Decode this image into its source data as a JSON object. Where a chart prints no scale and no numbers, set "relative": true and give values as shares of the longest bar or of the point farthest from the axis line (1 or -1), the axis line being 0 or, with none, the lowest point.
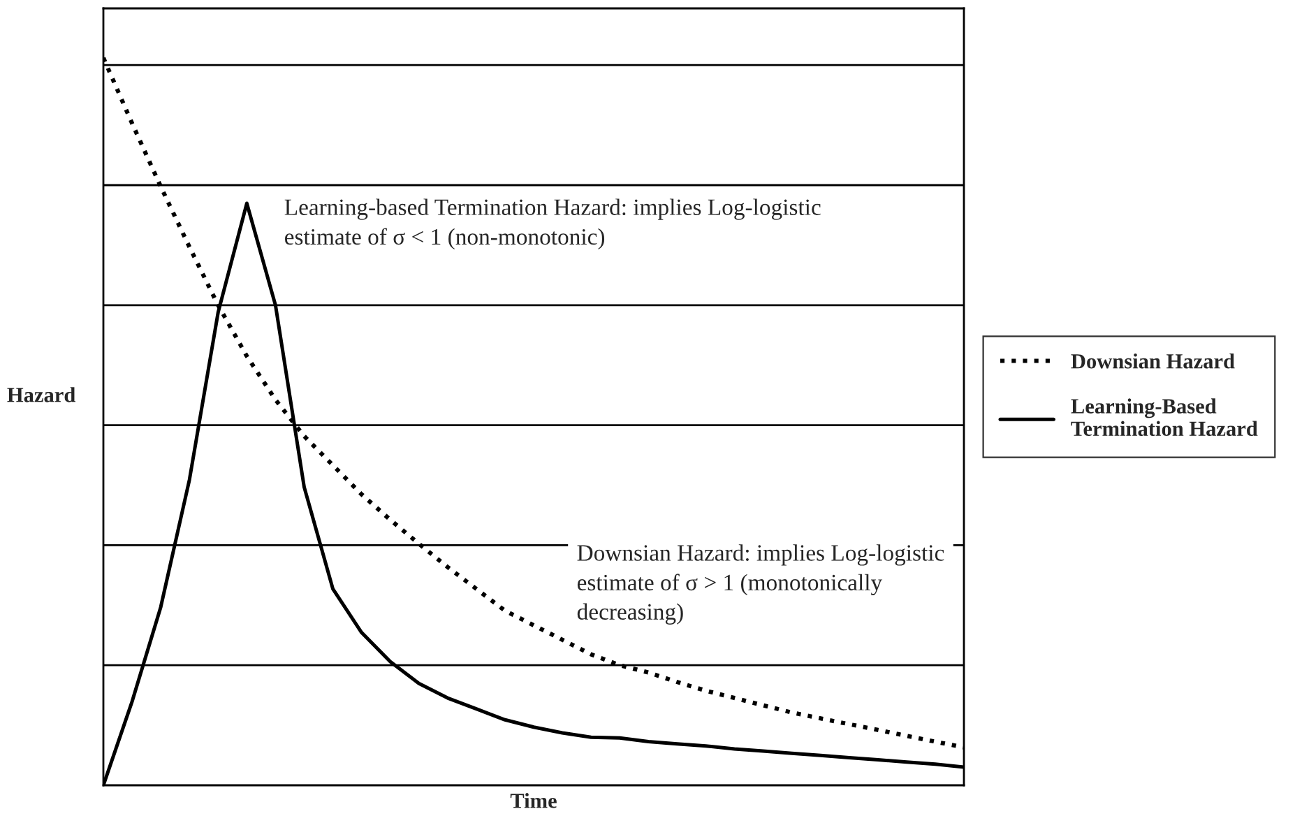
{
  "chart_data": {
    "type": "line",
    "relative": true,
    "xlabel": "Time",
    "ylabel": "Hazard",
    "grid": "y",
    "legend": "right",
    "marker": "none",
    "categories": [
      null,
      null,
      null,
      null,
      null,
      null,
      null,
      null,
      null,
      null,
      null,
      null,
      null,
      null,
      null,
      null,
      null,
      null,
      null,
      null,
      null,
      null,
      null,
      null,
      null,
      null,
      null,
      null,
      null,
      null,
      null
    ],
    "series": [
      {
        "name": "Downsian Hazard",
        "color": "#000000",
        "line_style": "dotted",
        "values": [
          1.0,
          0.91,
          0.823,
          0.74,
          0.66,
          0.59,
          0.53,
          0.48,
          0.44,
          0.4,
          0.365,
          0.332,
          0.3,
          0.27,
          0.24,
          0.22,
          0.2,
          0.18,
          0.165,
          0.155,
          0.142,
          0.13,
          0.12,
          0.11,
          0.1,
          0.092,
          0.084,
          0.076,
          0.068,
          0.06,
          0.052
        ]
      },
      {
        "name": "Learning-Based\nTermination Hazard",
        "color": "#000000",
        "line_style": "solid",
        "values": [
          0,
          0.115,
          0.245,
          0.42,
          0.65,
          0.8,
          0.66,
          0.41,
          0.27,
          0.21,
          0.17,
          0.14,
          0.12,
          0.105,
          0.09,
          0.08,
          0.072,
          0.066,
          0.065,
          0.06,
          0.057,
          0.054,
          0.05,
          0.047,
          0.044,
          0.041,
          0.038,
          0.035,
          0.032,
          0.029,
          0.025
        ]
      }
    ],
    "annotations": [
      "Learning-based Termination Hazard: implies Log-logistic\nestimate of σ < 1 (non-monotonic)",
      "Downsian Hazard: implies Log-logistic\nestimate of σ > 1 (monotonically\ndecreasing)"
    ]
  }
}
